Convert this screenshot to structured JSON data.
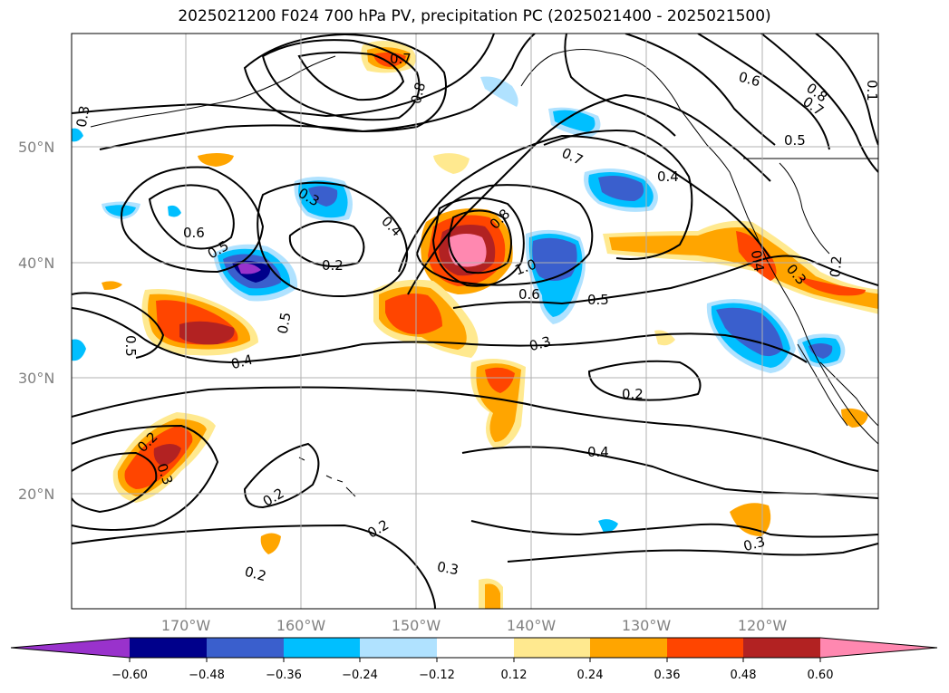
{
  "title": "2025021200 F024 700 hPa PV, precipitation PC (2025021400 - 2025021500)",
  "map": {
    "lon_labels": [
      "170°W",
      "160°W",
      "150°W",
      "140°W",
      "130°W",
      "120°W"
    ],
    "lat_labels": [
      "50°N",
      "40°N",
      "30°N",
      "20°N"
    ],
    "gridline_color": "#b0b0b0",
    "coastline_color": "#000000",
    "contour_color": "#000000"
  },
  "contour_labels": [
    "0.7",
    "0.8",
    "0.3",
    "0.3",
    "0.6",
    "0.5",
    "0.2",
    "0.4",
    "0.8",
    "0.7",
    "0.4",
    "1.0",
    "0.6",
    "0.5",
    "0.5",
    "0.4",
    "0.5",
    "0.3",
    "0.2",
    "0.4",
    "0.2",
    "0.3",
    "0.2",
    "0.2",
    "0.3",
    "0.2",
    "0.6",
    "0.8",
    "0.7",
    "0.5",
    "0.4",
    "0.3",
    "0.2",
    "0.1"
  ],
  "colorbar": {
    "colors": [
      "#9932cc",
      "#00008b",
      "#3a5fcd",
      "#00bfff",
      "#b0e2ff",
      "#ffffff",
      "#ffe98f",
      "#ffa500",
      "#ff4500",
      "#b22222",
      "#ff88b0"
    ],
    "tick_labels": [
      "−0.60",
      "−0.48",
      "−0.36",
      "−0.24",
      "−0.12",
      "0.12",
      "0.24",
      "0.36",
      "0.48",
      "0.60"
    ]
  }
}
